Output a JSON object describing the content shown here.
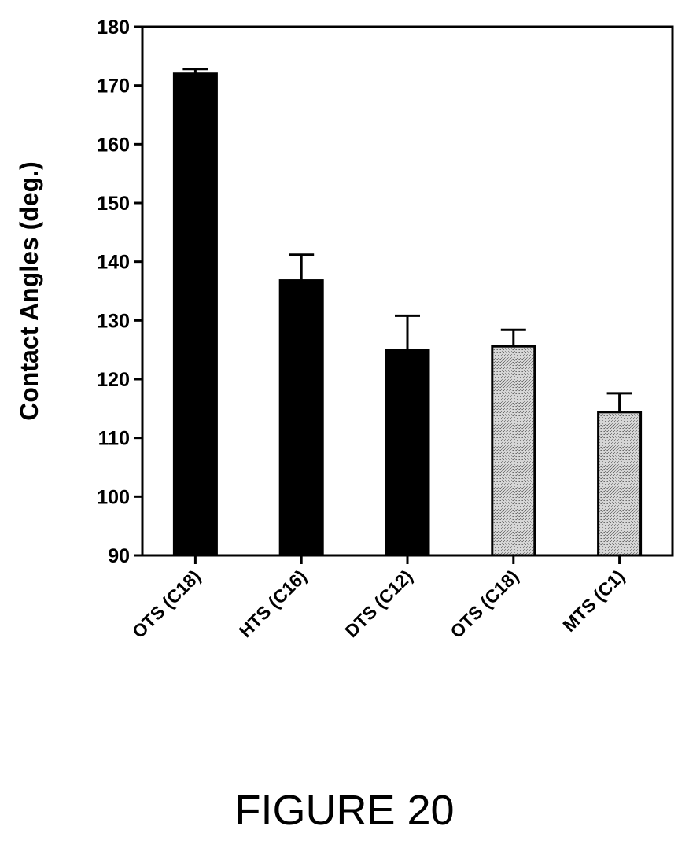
{
  "chart_data": {
    "type": "bar",
    "categories": [
      "OTS (C18)",
      "HTS (C16)",
      "DTS (C12)",
      "OTS (C18)",
      "MTS (C1)"
    ],
    "values": [
      172,
      136.8,
      125,
      125.6,
      114.4
    ],
    "errors": [
      0.8,
      4.4,
      5.8,
      2.8,
      3.2
    ],
    "ylabel": "Contact Angles (deg.)",
    "ylim": [
      90,
      180
    ],
    "yticks": [
      90,
      100,
      110,
      120,
      130,
      140,
      150,
      160,
      170,
      180
    ],
    "bar_fill": [
      "solid-black",
      "solid-black",
      "solid-black",
      "stippled-gray",
      "stippled-gray"
    ],
    "colors": {
      "solid": "#000000",
      "stippled": "#c8c8c8"
    },
    "grid": false,
    "legend": "none"
  },
  "figure": {
    "caption": "FIGURE 20"
  }
}
